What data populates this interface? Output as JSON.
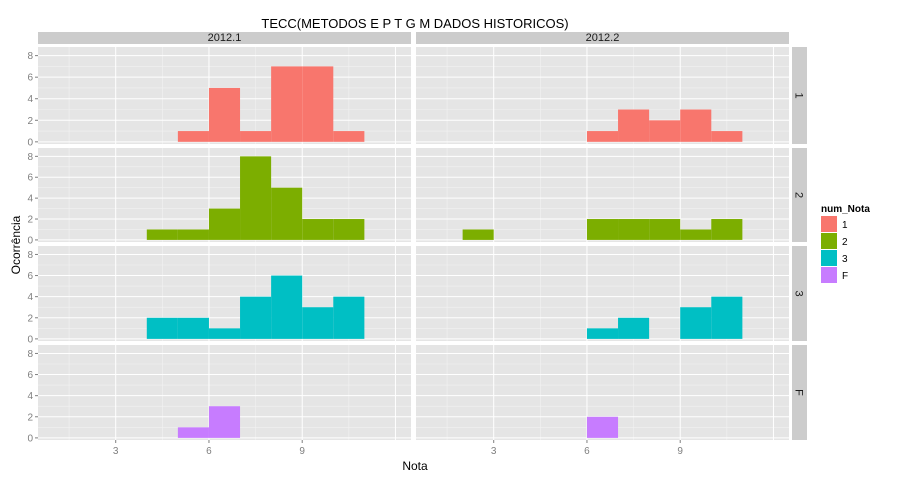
{
  "chart_data": {
    "type": "bar",
    "title": "TECC(METODOS E P T G M DADOS HISTORICOS)",
    "xlabel": "Nota",
    "ylabel": "Ocorrência",
    "xlim": [
      0.5,
      12.5
    ],
    "ylim": [
      -0.2,
      8.8
    ],
    "x_ticks": [
      3,
      6,
      9
    ],
    "y_ticks": [
      0,
      2,
      4,
      6,
      8
    ],
    "grid": true,
    "legend": {
      "title": "num_Nota",
      "position": "right",
      "entries": [
        {
          "label": "1",
          "color": "#F8766D"
        },
        {
          "label": "2",
          "color": "#7CAE00"
        },
        {
          "label": "3",
          "color": "#00BFC4"
        },
        {
          "label": "F",
          "color": "#C77CFF"
        }
      ]
    },
    "columns": [
      "2012.1",
      "2012.2"
    ],
    "rows": [
      "1",
      "2",
      "3",
      "F"
    ],
    "panels": [
      {
        "row": "1",
        "col": "2012.1",
        "bins": [
          [
            5,
            6,
            1
          ],
          [
            6,
            7,
            5
          ],
          [
            7,
            8,
            1
          ],
          [
            8,
            9,
            7
          ],
          [
            9,
            10,
            7
          ],
          [
            10,
            11,
            1
          ]
        ]
      },
      {
        "row": "1",
        "col": "2012.2",
        "bins": [
          [
            6,
            7,
            1
          ],
          [
            7,
            8,
            3
          ],
          [
            8,
            9,
            2
          ],
          [
            9,
            10,
            3
          ],
          [
            10,
            11,
            1
          ]
        ]
      },
      {
        "row": "2",
        "col": "2012.1",
        "bins": [
          [
            4,
            5,
            1
          ],
          [
            5,
            6,
            1
          ],
          [
            6,
            7,
            3
          ],
          [
            7,
            8,
            8
          ],
          [
            8,
            9,
            5
          ],
          [
            9,
            10,
            2
          ],
          [
            10,
            11,
            2
          ]
        ]
      },
      {
        "row": "2",
        "col": "2012.2",
        "bins": [
          [
            2,
            3,
            1
          ],
          [
            6,
            7,
            2
          ],
          [
            7,
            8,
            2
          ],
          [
            8,
            9,
            2
          ],
          [
            9,
            10,
            1
          ],
          [
            10,
            11,
            2
          ]
        ]
      },
      {
        "row": "3",
        "col": "2012.1",
        "bins": [
          [
            4,
            5,
            2
          ],
          [
            5,
            6,
            2
          ],
          [
            6,
            7,
            1
          ],
          [
            7,
            8,
            4
          ],
          [
            8,
            9,
            6
          ],
          [
            9,
            10,
            3
          ],
          [
            10,
            11,
            4
          ]
        ]
      },
      {
        "row": "3",
        "col": "2012.2",
        "bins": [
          [
            6,
            7,
            1
          ],
          [
            7,
            8,
            2
          ],
          [
            9,
            10,
            3
          ],
          [
            10,
            11,
            4
          ]
        ]
      },
      {
        "row": "F",
        "col": "2012.1",
        "bins": [
          [
            5,
            6,
            1
          ],
          [
            6,
            7,
            3
          ]
        ]
      },
      {
        "row": "F",
        "col": "2012.2",
        "bins": [
          [
            6,
            7,
            2
          ]
        ]
      }
    ]
  }
}
